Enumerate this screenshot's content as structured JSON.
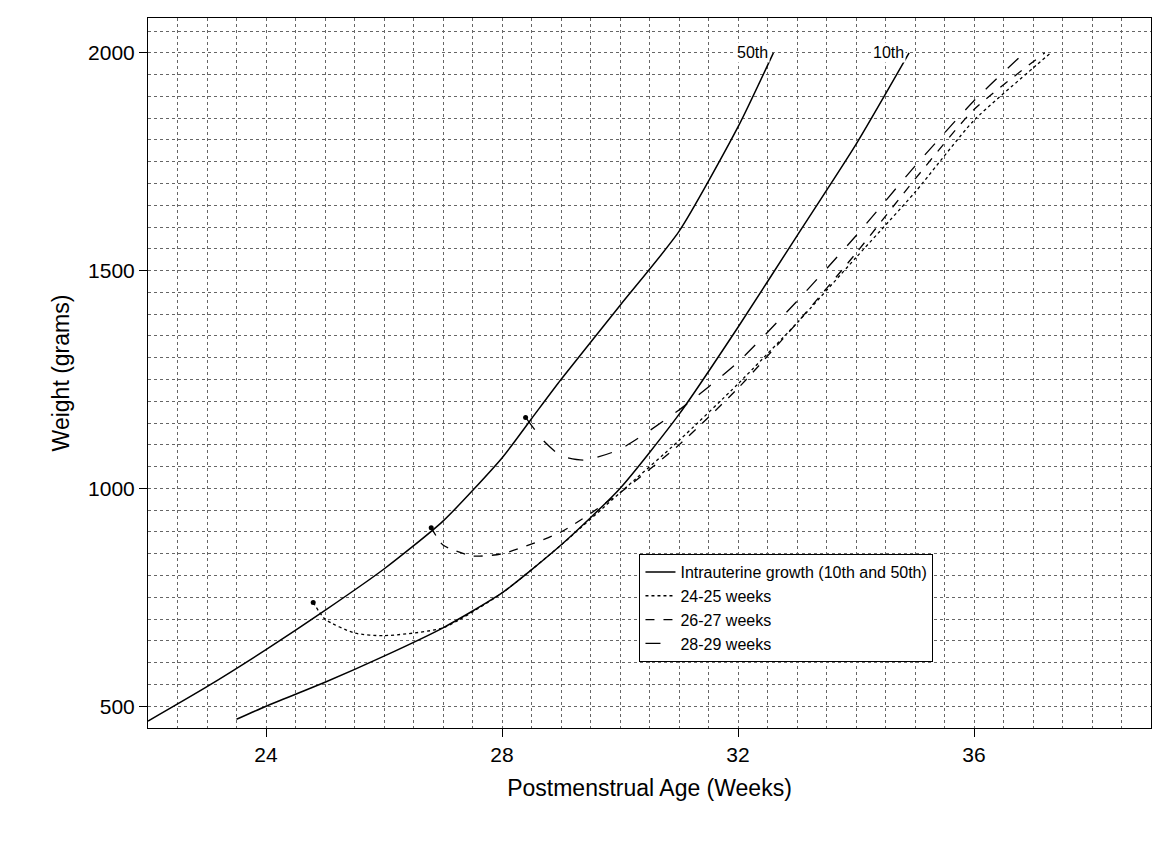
{
  "chart_data": {
    "type": "line",
    "x_label": "Postmenstrual Age (Weeks)",
    "y_label": "Weight (grams)",
    "xlim": [
      22,
      39
    ],
    "ylim": [
      450,
      2080
    ],
    "xticks": [
      24,
      28,
      32,
      36
    ],
    "yticks": [
      500,
      1000,
      1500,
      2000
    ],
    "grid": true,
    "legend": "bottom right",
    "series": [
      {
        "name": "Intrauterine growth (10th and 50th)",
        "color": "#000000",
        "line_style": "solid",
        "lines": [
          {
            "label": "50th",
            "x": [
              22,
              23,
              24,
              25,
              26,
              27,
              28,
              28.5,
              29,
              30,
              31,
              32,
              32.6
            ],
            "values": [
              466,
              545,
              630,
              720,
              815,
              925,
              1070,
              1160,
              1250,
              1420,
              1590,
              1830,
              2000
            ]
          },
          {
            "label": "10th",
            "x": [
              23.5,
              24,
              25,
              26,
              27,
              28,
              29,
              30,
              31,
              32,
              33,
              34,
              34.9
            ],
            "values": [
              470,
              500,
              555,
              615,
              680,
              760,
              870,
              1000,
              1170,
              1370,
              1580,
              1790,
              2000
            ]
          }
        ]
      },
      {
        "name": "24-25 weeks",
        "color": "#000000",
        "line_style": "dot",
        "marker": "circle",
        "x": [
          24.8,
          25,
          25.5,
          26,
          27,
          28,
          29,
          30,
          31,
          32,
          33,
          34,
          35,
          36,
          37,
          37.3
        ],
        "values": [
          738,
          700,
          668,
          662,
          680,
          760,
          870,
          990,
          1110,
          1240,
          1380,
          1530,
          1680,
          1845,
          1965,
          2000
        ]
      },
      {
        "name": "26-27 weeks",
        "color": "#000000",
        "line_style": "dash",
        "marker": "circle",
        "x": [
          26.8,
          27,
          27.5,
          28,
          29,
          30,
          31,
          32,
          33,
          34,
          35,
          36,
          37.2
        ],
        "values": [
          910,
          870,
          845,
          850,
          900,
          990,
          1100,
          1230,
          1380,
          1540,
          1710,
          1870,
          2000
        ]
      },
      {
        "name": "28-29 weeks",
        "color": "#000000",
        "line_style": "longdash",
        "marker": "circle",
        "x": [
          28.4,
          28.7,
          29,
          29.4,
          30,
          31,
          32,
          33,
          34,
          35,
          36,
          36.85
        ],
        "values": [
          1163,
          1110,
          1075,
          1065,
          1090,
          1180,
          1290,
          1430,
          1580,
          1740,
          1890,
          2000
        ]
      }
    ]
  }
}
